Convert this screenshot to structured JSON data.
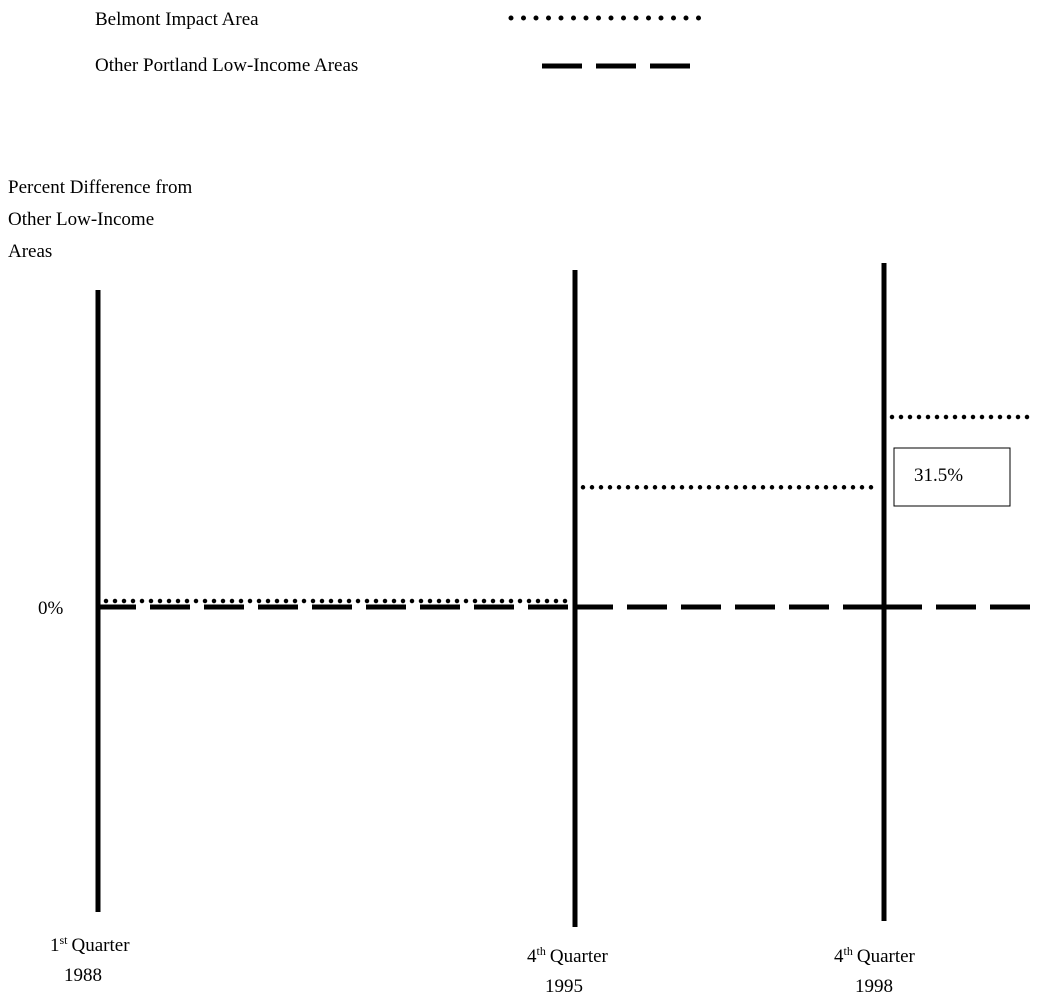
{
  "chart_data": {
    "type": "line",
    "ylabel_lines": [
      "Percent Difference from",
      "Other Low-Income",
      "Areas"
    ],
    "y_tick_label": "0%",
    "categories": [
      {
        "label": "Quarter",
        "sup": "st",
        "prefix": "1",
        "year": "1988"
      },
      {
        "label": "Quarter",
        "sup": "th",
        "prefix": "4",
        "year": "1995"
      },
      {
        "label": "Quarter",
        "sup": "th",
        "prefix": "4",
        "year": "1998"
      }
    ],
    "series": [
      {
        "name": "Belmont Impact Area",
        "style": "dotted",
        "values": [
          0,
          31.5,
          50
        ]
      },
      {
        "name": "Other Portland Low-Income Areas",
        "style": "dashed",
        "values": [
          0,
          0,
          0
        ]
      }
    ],
    "annotations": [
      {
        "text": "31.5%"
      }
    ],
    "ylim": [
      -60,
      60
    ],
    "grid": false,
    "legend_placement": "top-left",
    "colors": {
      "line": "#000000",
      "background": "#ffffff"
    }
  }
}
